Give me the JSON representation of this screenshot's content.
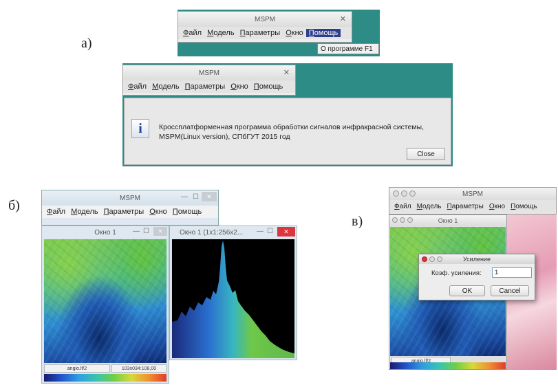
{
  "panels": {
    "a": "а)",
    "b": "б)",
    "c": "в)"
  },
  "app_title": "MSPM",
  "menu": {
    "file": "Файл",
    "model": "Модель",
    "params": "Параметры",
    "window": "Окно",
    "help": "Помощь"
  },
  "help_menu_item": "О программе F1",
  "about_dialog": {
    "title": "MSPM",
    "message_line1": "Кроссплатформенная программа обработки сигналов инфракрасной системы,",
    "message_line2": "MSPM(Linux version), СПбГУТ 2015 год",
    "close_label": "Close"
  },
  "windows_b": {
    "image_window_title": "Окно 1",
    "histogram_window_title": "Окно 1 (1x1:256x2...",
    "status_file": "angio.lf/2",
    "status_coords": "103x034:108,00"
  },
  "mac_c": {
    "image_window_title": "Окно 1",
    "dialog_title": "Усиление",
    "gain_label": "Коэф. усиления:",
    "gain_value": "1",
    "ok_label": "OK",
    "cancel_label": "Cancel",
    "status_file": "angio.lf/2"
  },
  "colors": {
    "teal_background": "#2e8c86",
    "menu_highlight": "#2e3e8a",
    "close_red": "#d9363e"
  }
}
